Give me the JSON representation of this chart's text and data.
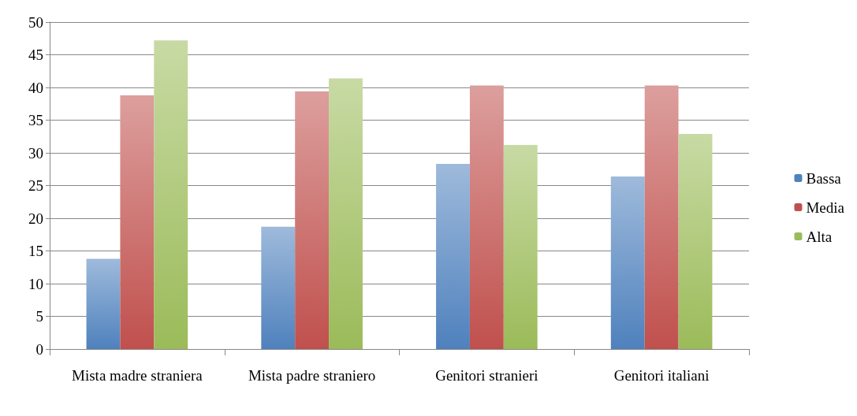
{
  "chart_data": {
    "type": "bar",
    "categories": [
      "Mista madre straniera",
      "Mista padre straniero",
      "Genitori stranieri",
      "Genitori italiani"
    ],
    "series": [
      {
        "name": "Bassa",
        "color": "#4f81bd",
        "values": [
          13.8,
          18.7,
          28.3,
          26.4
        ]
      },
      {
        "name": "Media",
        "color": "#c0504d",
        "values": [
          38.8,
          39.4,
          40.3,
          40.3
        ]
      },
      {
        "name": "Alta",
        "color": "#9bbb59",
        "values": [
          47.2,
          41.4,
          31.2,
          32.9
        ]
      }
    ],
    "ylim": [
      0,
      50
    ],
    "yticks": [
      0,
      5,
      10,
      15,
      20,
      25,
      30,
      35,
      40,
      45,
      50
    ],
    "grid": "y",
    "legend": "right"
  }
}
